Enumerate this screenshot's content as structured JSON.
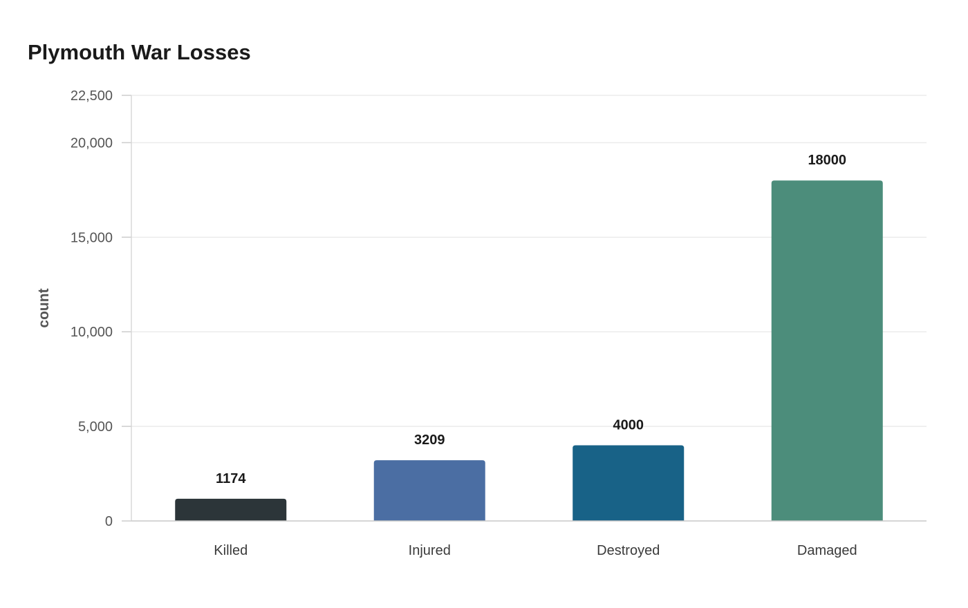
{
  "chart_data": {
    "type": "bar",
    "title": "Plymouth War Losses",
    "xlabel": "",
    "ylabel": "count",
    "categories": [
      "Killed",
      "Injured",
      "Destroyed",
      "Damaged"
    ],
    "values": [
      1174,
      3209,
      4000,
      18000
    ],
    "data_labels": [
      "1174",
      "3209",
      "4000",
      "18000"
    ],
    "colors": [
      "#2c3539",
      "#4b6ea3",
      "#186287",
      "#4c8d7b"
    ],
    "ylim": [
      0,
      22500
    ],
    "yticks": [
      0,
      5000,
      10000,
      15000,
      20000,
      22500
    ],
    "ytick_labels": [
      "0",
      "5,000",
      "10,000",
      "15,000",
      "20,000",
      "22,500"
    ],
    "grid": true,
    "legend": "none"
  }
}
